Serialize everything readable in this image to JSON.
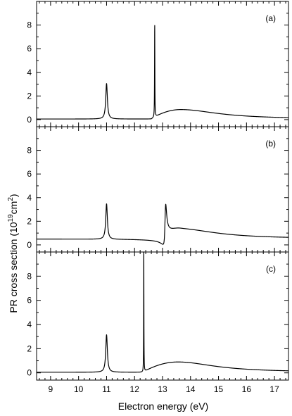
{
  "chart_data": {
    "type": "line",
    "xlabel": "Electron energy (eV)",
    "ylabel": {
      "text": "PR cross section (10",
      "sup1": "19",
      "mid": "cm",
      "sup2": "2",
      "end": ")"
    },
    "xlim": [
      8.5,
      17.5
    ],
    "ylim": [
      -0.6,
      10
    ],
    "x_ticks": [
      9,
      10,
      11,
      12,
      13,
      14,
      15,
      16,
      17
    ],
    "y_ticks": [
      0,
      2,
      4,
      6,
      8
    ],
    "panels": [
      {
        "label": "(a)",
        "baseline": 0.05,
        "components": [
          {
            "kind": "lorentz",
            "x0": 11.0,
            "amp": 3.0,
            "width": 0.035
          },
          {
            "kind": "lorentz",
            "x0": 12.72,
            "amp": 7.95,
            "width": 0.006
          },
          {
            "kind": "continuum",
            "onset": 12.6,
            "peak": 13.65,
            "amp": 0.8,
            "rise": 0.5,
            "decay": 1.6
          }
        ]
      },
      {
        "label": "(b)",
        "baseline": 0.05,
        "components": [
          {
            "kind": "lorentz",
            "x0": 11.0,
            "amp": 3.0,
            "width": 0.035
          },
          {
            "kind": "fano",
            "x0": 13.1,
            "amp": 3.35,
            "width": 0.035,
            "q": 2.5
          },
          {
            "kind": "continuum",
            "onset": 13.1,
            "peak": 13.65,
            "amp": 0.75,
            "rise": 0.45,
            "decay": 1.6
          }
        ]
      },
      {
        "label": "(c)",
        "baseline": 0.05,
        "components": [
          {
            "kind": "lorentz",
            "x0": 11.0,
            "amp": 3.1,
            "width": 0.035
          },
          {
            "kind": "lorentz",
            "x0": 12.33,
            "amp": 10.5,
            "width": 0.005
          },
          {
            "kind": "continuum",
            "onset": 12.3,
            "peak": 13.55,
            "amp": 0.85,
            "rise": 0.55,
            "decay": 1.6
          }
        ]
      }
    ],
    "colors": {
      "line": "#000000",
      "axis": "#000000"
    }
  }
}
